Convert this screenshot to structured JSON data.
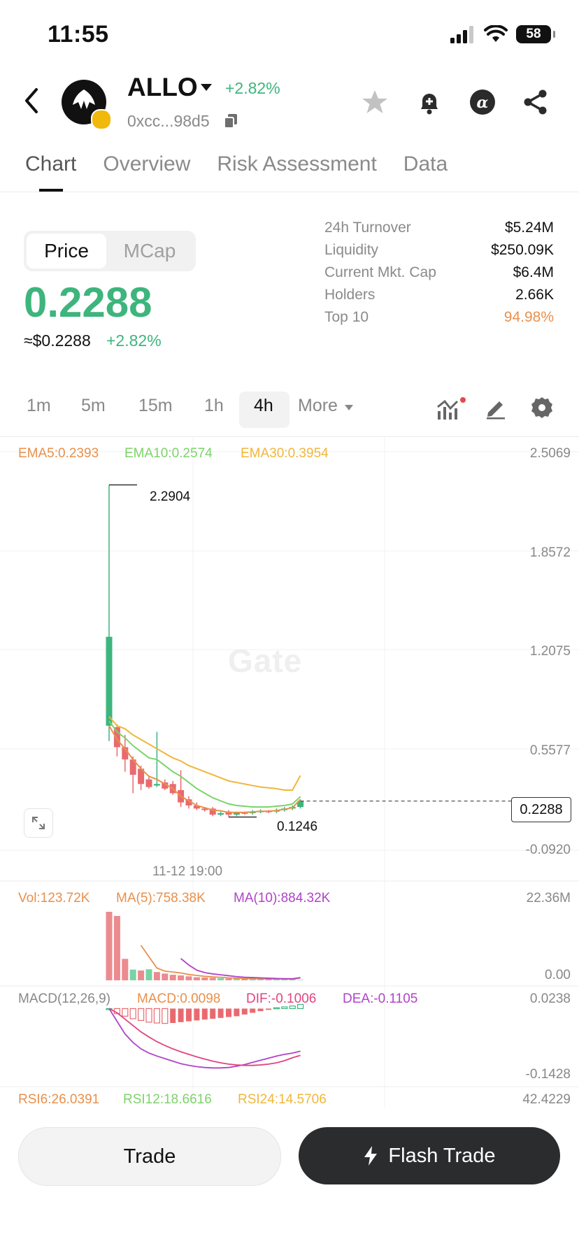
{
  "status": {
    "time": "11:55",
    "battery": "58"
  },
  "token": {
    "name": "ALLO",
    "change": "+2.82%",
    "address": "0xcc...98d5"
  },
  "tabs": [
    "Chart",
    "Overview",
    "Risk Assessment",
    "Data"
  ],
  "price_toggle": {
    "active": "Price",
    "inactive": "MCap"
  },
  "price": {
    "value": "0.2288",
    "usd": "≈$0.2288",
    "usd_change": "+2.82%"
  },
  "stats": [
    {
      "label": "24h Turnover",
      "value": "$5.24M"
    },
    {
      "label": "Liquidity",
      "value": "$250.09K"
    },
    {
      "label": "Current Mkt. Cap",
      "value": "$6.4M"
    },
    {
      "label": "Holders",
      "value": "2.66K"
    },
    {
      "label": "Top 10",
      "value": "94.98%"
    }
  ],
  "timeframes": [
    "1m",
    "5m",
    "15m",
    "1h",
    "4h"
  ],
  "timeframe_more": "More",
  "colors": {
    "up": "#3db57d",
    "down": "#e86a6f",
    "ema5": "#e9904b",
    "ema10": "#7dd36a",
    "ema30": "#f0b63c",
    "purple": "#b043c9",
    "pink": "#e0457f",
    "top10": "#e9904b"
  },
  "main_chart": {
    "ema5": "EMA5:0.2393",
    "ema10": "EMA10:0.2574",
    "ema30": "EMA30:0.3954",
    "axis": [
      "2.5069",
      "1.8572",
      "1.2075",
      "0.5577",
      "-0.0920"
    ],
    "high_label": "2.2904",
    "low_label": "0.1246",
    "last_price": "0.2288",
    "date_label": "11-12 19:00",
    "watermark": "Gate"
  },
  "volume_panel": {
    "vol": "Vol:123.72K",
    "ma5": "MA(5):758.38K",
    "ma10": "MA(10):884.32K",
    "axis": [
      "22.36M",
      "0.00"
    ]
  },
  "macd_panel": {
    "title": "MACD(12,26,9)",
    "macd": "MACD:0.0098",
    "dif": "DIF:-0.1006",
    "dea": "DEA:-0.1105",
    "axis": [
      "0.0238",
      "-0.1428"
    ]
  },
  "rsi_panel": {
    "rsi6": "RSI6:26.0391",
    "rsi12": "RSI12:18.6616",
    "rsi24": "RSI24:14.5706",
    "axis": "42.4229"
  },
  "actions": {
    "trade": "Trade",
    "flash": "Flash Trade"
  },
  "chart_data": {
    "type": "candlestick",
    "y_axis_ticks": [
      2.5069,
      1.8572,
      1.2075,
      0.5577,
      -0.092
    ],
    "ylim": [
      -0.092,
      2.5069
    ],
    "high": 2.2904,
    "low": 0.1246,
    "last": 0.2288,
    "candles": [
      {
        "o": 0.72,
        "c": 1.3,
        "h": 2.2904,
        "l": 0.62
      },
      {
        "o": 0.71,
        "c": 0.58,
        "h": 0.73,
        "l": 0.52
      },
      {
        "o": 0.58,
        "c": 0.5,
        "h": 0.66,
        "l": 0.42
      },
      {
        "o": 0.5,
        "c": 0.4,
        "h": 0.52,
        "l": 0.28
      },
      {
        "o": 0.44,
        "c": 0.34,
        "h": 0.46,
        "l": 0.3
      },
      {
        "o": 0.37,
        "c": 0.32,
        "h": 0.39,
        "l": 0.31
      },
      {
        "o": 0.33,
        "c": 0.34,
        "h": 0.68,
        "l": 0.32
      },
      {
        "o": 0.35,
        "c": 0.31,
        "h": 0.37,
        "l": 0.3
      },
      {
        "o": 0.34,
        "c": 0.28,
        "h": 0.36,
        "l": 0.27
      },
      {
        "o": 0.3,
        "c": 0.22,
        "h": 0.43,
        "l": 0.19
      },
      {
        "o": 0.24,
        "c": 0.2,
        "h": 0.26,
        "l": 0.18
      },
      {
        "o": 0.2,
        "c": 0.18,
        "h": 0.22,
        "l": 0.17
      },
      {
        "o": 0.18,
        "c": 0.17,
        "h": 0.19,
        "l": 0.16
      },
      {
        "o": 0.18,
        "c": 0.14,
        "h": 0.19,
        "l": 0.13
      },
      {
        "o": 0.14,
        "c": 0.15,
        "h": 0.16,
        "l": 0.13
      },
      {
        "o": 0.16,
        "c": 0.14,
        "h": 0.17,
        "l": 0.1246
      },
      {
        "o": 0.14,
        "c": 0.155,
        "h": 0.16,
        "l": 0.13
      },
      {
        "o": 0.155,
        "c": 0.15,
        "h": 0.16,
        "l": 0.14
      },
      {
        "o": 0.15,
        "c": 0.16,
        "h": 0.17,
        "l": 0.14
      },
      {
        "o": 0.16,
        "c": 0.165,
        "h": 0.175,
        "l": 0.15
      },
      {
        "o": 0.165,
        "c": 0.16,
        "h": 0.17,
        "l": 0.15
      },
      {
        "o": 0.16,
        "c": 0.17,
        "h": 0.18,
        "l": 0.15
      },
      {
        "o": 0.17,
        "c": 0.18,
        "h": 0.19,
        "l": 0.16
      },
      {
        "o": 0.18,
        "c": 0.19,
        "h": 0.2,
        "l": 0.17
      },
      {
        "o": 0.19,
        "c": 0.2288,
        "h": 0.24,
        "l": 0.18
      }
    ],
    "ema30": [
      0.78,
      0.72,
      0.7,
      0.66,
      0.63,
      0.6,
      0.57,
      0.54,
      0.51,
      0.49,
      0.46,
      0.44,
      0.42,
      0.4,
      0.38,
      0.36,
      0.35,
      0.34,
      0.33,
      0.32,
      0.315,
      0.31,
      0.3,
      0.3,
      0.3954
    ],
    "ema10": [
      0.75,
      0.68,
      0.64,
      0.59,
      0.55,
      0.51,
      0.5,
      0.46,
      0.42,
      0.39,
      0.35,
      0.31,
      0.28,
      0.25,
      0.23,
      0.21,
      0.2,
      0.195,
      0.19,
      0.19,
      0.19,
      0.195,
      0.2,
      0.21,
      0.2574
    ],
    "ema5": [
      0.72,
      0.63,
      0.57,
      0.5,
      0.44,
      0.39,
      0.37,
      0.34,
      0.31,
      0.26,
      0.23,
      0.2,
      0.185,
      0.17,
      0.165,
      0.155,
      0.155,
      0.155,
      0.158,
      0.162,
      0.163,
      0.167,
      0.175,
      0.185,
      0.2393
    ],
    "volume": {
      "ylim": [
        0,
        22.36
      ],
      "values": [
        22.36,
        21.0,
        7.0,
        3.5,
        3.2,
        3.6,
        2.7,
        2.2,
        1.8,
        1.6,
        1.3,
        1.0,
        0.9,
        0.8,
        0.7,
        0.6,
        0.55,
        0.5,
        0.45,
        0.42,
        0.4,
        0.38,
        0.35,
        0.3,
        0.12
      ],
      "up": [
        false,
        false,
        false,
        true,
        false,
        true,
        false,
        false,
        false,
        false,
        false,
        false,
        false,
        false,
        true,
        false,
        true,
        false,
        true,
        true,
        false,
        true,
        true,
        true,
        true
      ],
      "ma5": [
        null,
        null,
        null,
        null,
        11.4,
        7.7,
        4.0,
        3.0,
        2.7,
        2.4,
        1.9,
        1.6,
        1.3,
        1.1,
        1.0,
        0.8,
        0.7,
        0.6,
        0.55,
        0.5,
        0.45,
        0.42,
        0.4,
        0.38,
        0.758
      ],
      "ma10": [
        null,
        null,
        null,
        null,
        null,
        null,
        null,
        null,
        null,
        7.1,
        5.0,
        3.3,
        2.5,
        2.1,
        1.8,
        1.5,
        1.2,
        1.0,
        0.9,
        0.8,
        0.7,
        0.6,
        0.55,
        0.5,
        0.884
      ]
    },
    "macd": {
      "ylim": [
        -0.1428,
        0.0238
      ],
      "hist": [
        0.0,
        -0.012,
        -0.018,
        -0.024,
        -0.028,
        -0.032,
        -0.034,
        -0.035,
        -0.034,
        -0.032,
        -0.03,
        -0.028,
        -0.026,
        -0.024,
        -0.022,
        -0.02,
        -0.018,
        -0.014,
        -0.01,
        -0.006,
        -0.003,
        0.002,
        0.004,
        0.006,
        0.0098
      ],
      "dif": [
        0.0,
        -0.03,
        -0.06,
        -0.08,
        -0.095,
        -0.105,
        -0.112,
        -0.118,
        -0.124,
        -0.13,
        -0.134,
        -0.137,
        -0.139,
        -0.14,
        -0.14,
        -0.139,
        -0.136,
        -0.132,
        -0.127,
        -0.122,
        -0.117,
        -0.112,
        -0.108,
        -0.105,
        -0.1006
      ],
      "dea": [
        0.0,
        -0.01,
        -0.025,
        -0.04,
        -0.055,
        -0.067,
        -0.078,
        -0.087,
        -0.095,
        -0.102,
        -0.108,
        -0.114,
        -0.119,
        -0.124,
        -0.128,
        -0.131,
        -0.133,
        -0.134,
        -0.134,
        -0.133,
        -0.131,
        -0.128,
        -0.123,
        -0.116,
        -0.1105
      ]
    }
  }
}
